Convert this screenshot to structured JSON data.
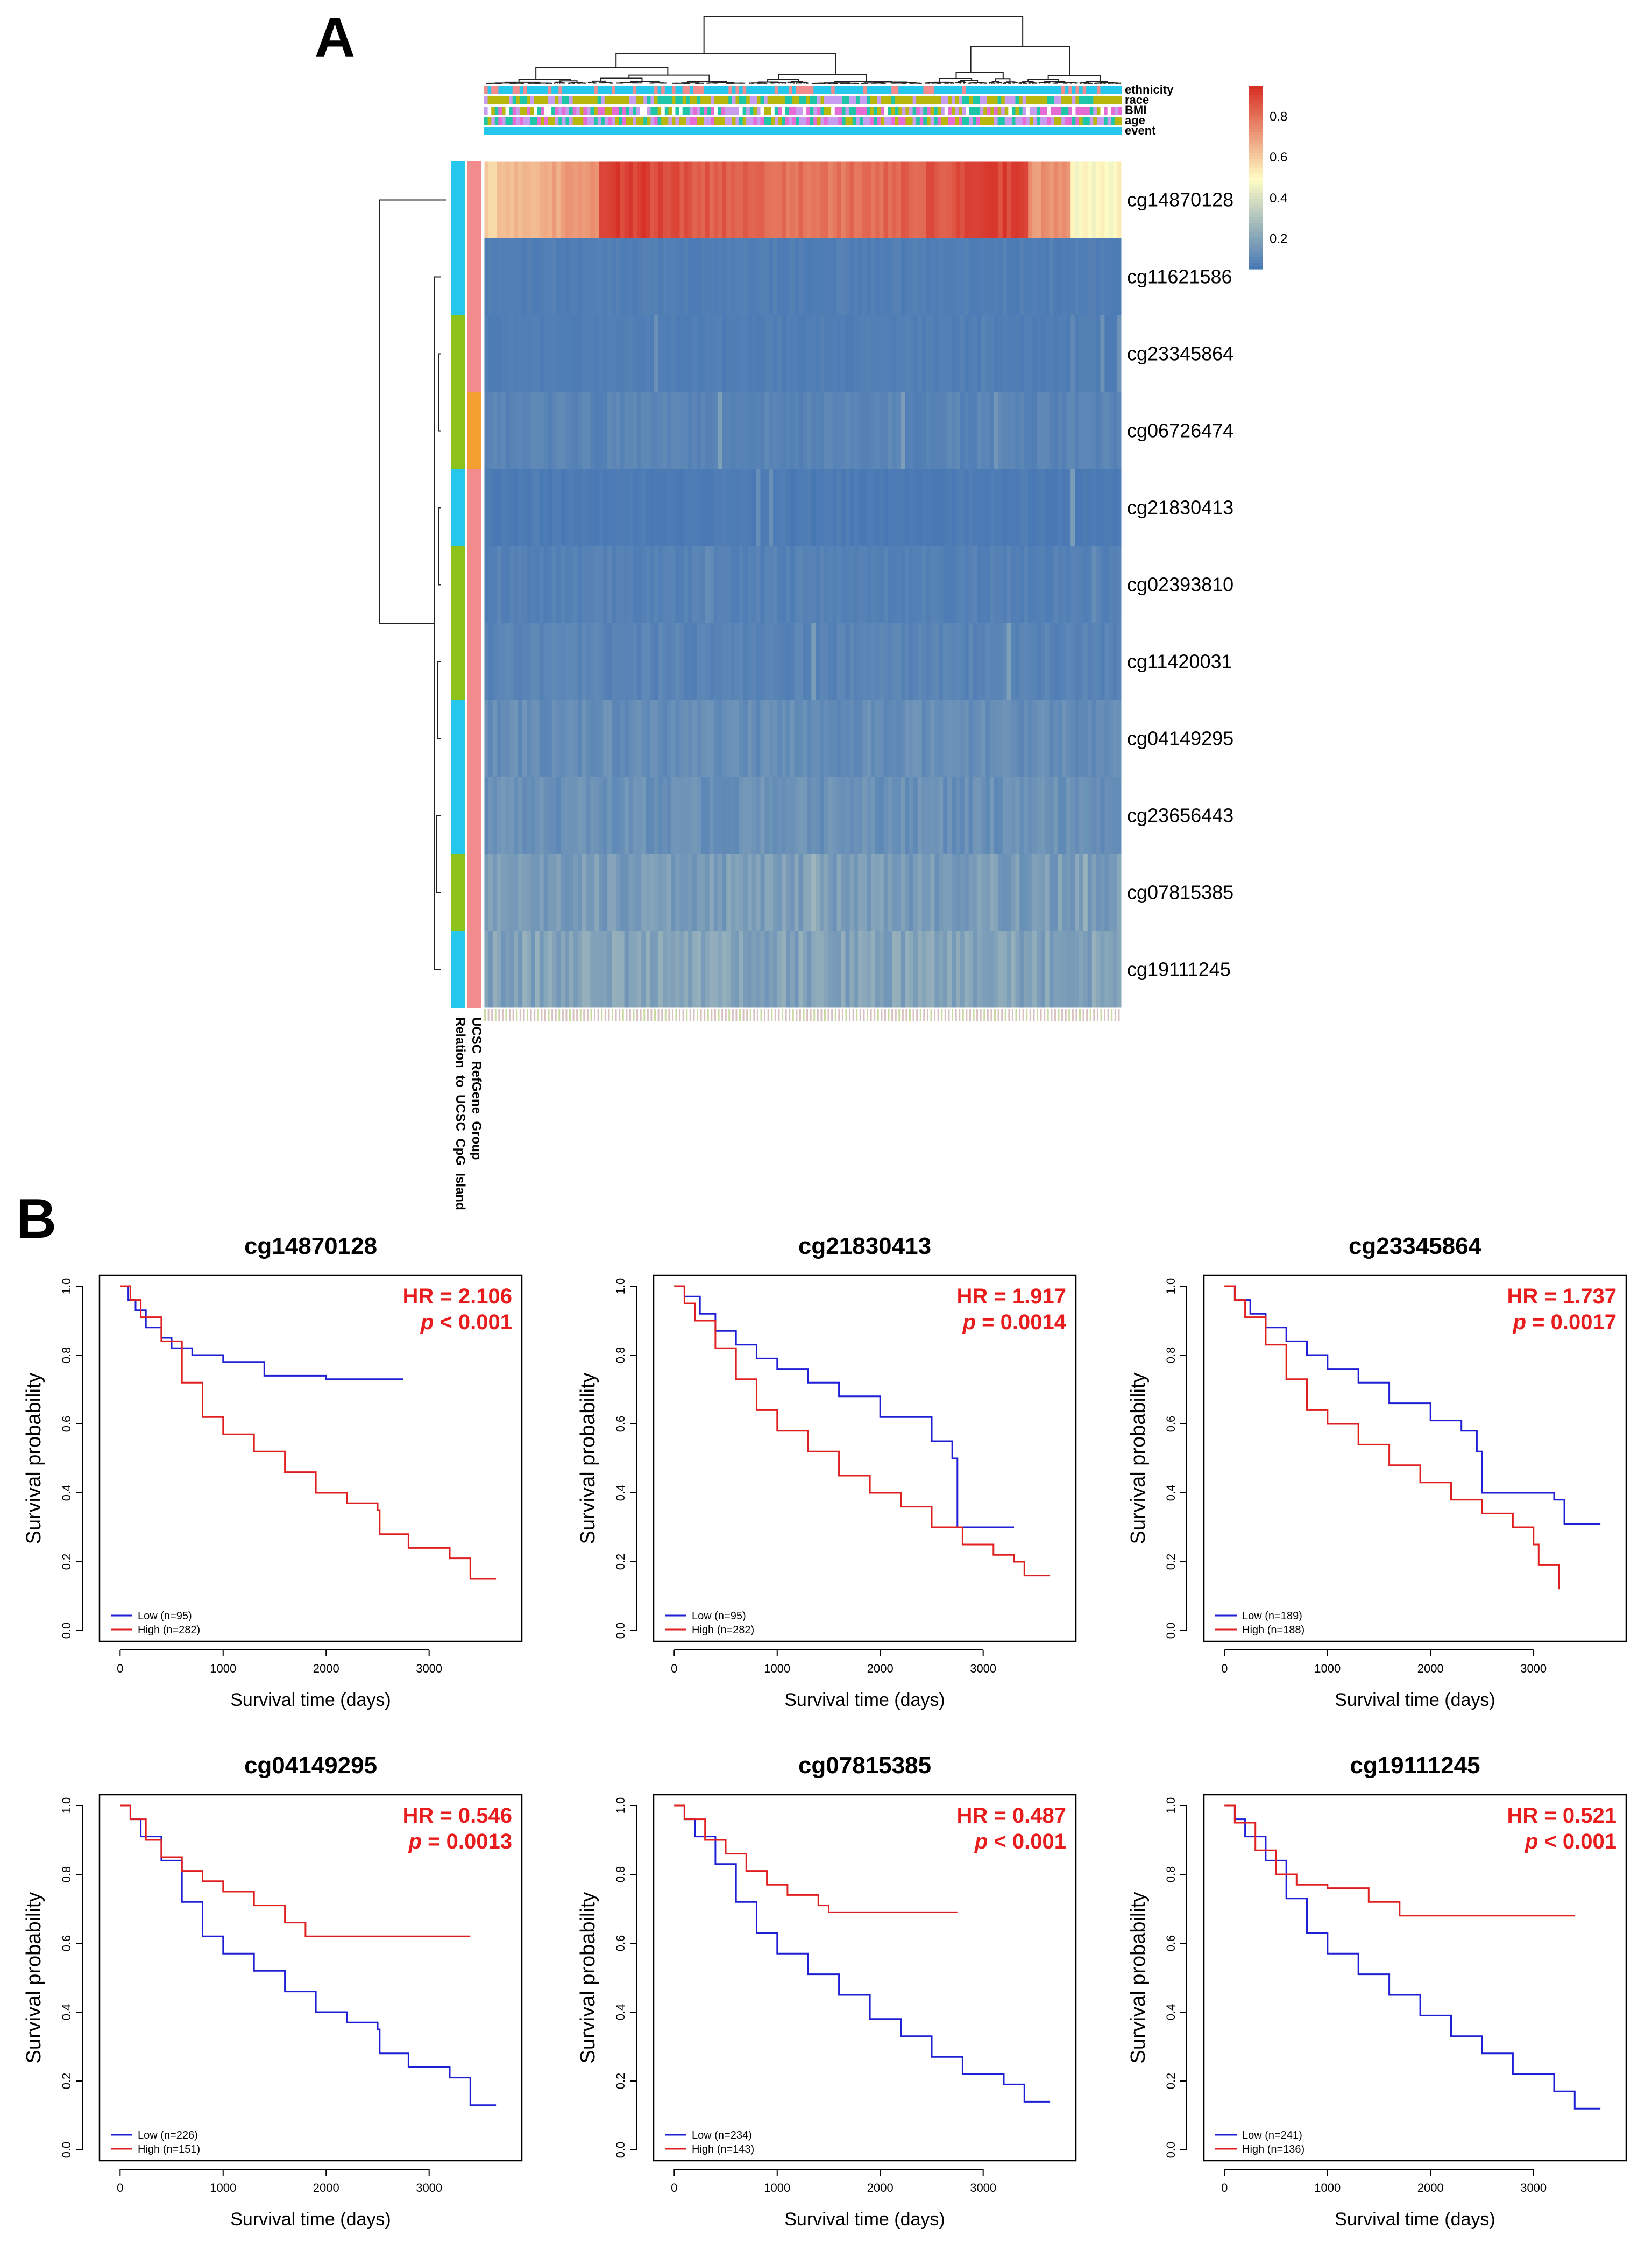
{
  "figure": {
    "panel_a_label": "A",
    "panel_b_label": "B"
  },
  "colors": {
    "high": "#e02020",
    "low": "#1f1fd6",
    "hr_text": "#e81c1c",
    "heat_low": "#4475b4",
    "heat_mid": "#fffdc4",
    "heat_high": "#d73027",
    "annot_cyan": "#25c8ec",
    "annot_pink": "#f28b8b",
    "annot_green": "#8cc21a",
    "annot_orange": "#f4a030",
    "annot_purple": "#c79df0",
    "annot_olive": "#b7b70d",
    "annot_teal": "#1cc6a6",
    "annot_magenta": "#e66bd4"
  },
  "chart_data": [
    {
      "type": "heatmap",
      "panel": "A",
      "rows": [
        "cg14870128",
        "cg11621586",
        "cg23345864",
        "cg06726474",
        "cg21830413",
        "cg02393810",
        "cg11420031",
        "cg04149295",
        "cg23656443",
        "cg07815385",
        "cg19111245"
      ],
      "row_mean_beta": [
        0.75,
        0.08,
        0.08,
        0.1,
        0.07,
        0.09,
        0.1,
        0.13,
        0.14,
        0.18,
        0.2
      ],
      "column_annotations": [
        "ethnicity",
        "race",
        "BMI",
        "age",
        "event"
      ],
      "row_annotations": [
        "UCSC_RefGene_Group",
        "Relation_to_UCSC_CpG_Island"
      ],
      "row_annotation_groups": {
        "Relation_to_UCSC_CpG_Island": [
          "cyan",
          "cyan",
          "green",
          "green",
          "cyan",
          "green",
          "green",
          "cyan",
          "cyan",
          "green",
          "cyan"
        ],
        "UCSC_RefGene_Group": [
          "pink",
          "pink",
          "pink",
          "orange",
          "pink",
          "pink",
          "pink",
          "pink",
          "pink",
          "pink",
          "pink"
        ]
      },
      "colorbar_ticks": [
        0.2,
        0.4,
        0.6,
        0.8
      ],
      "value_range": [
        0.05,
        0.95
      ]
    },
    {
      "type": "line",
      "panel": "B",
      "title": "cg14870128",
      "xlabel": "Survival time (days)",
      "ylabel": "Survival probability",
      "xlim": [
        -200,
        3900
      ],
      "ylim": [
        0,
        1.0
      ],
      "xticks": [
        0,
        1000,
        2000,
        3000
      ],
      "yticks": [
        0.0,
        0.2,
        0.4,
        0.6,
        0.8,
        1.0
      ],
      "hr_label": "HR = 2.106",
      "p_prefix": "p",
      "p_rest": " < 0.001",
      "legend": [
        "Low (n=95)",
        "High (n=282)"
      ],
      "series": [
        {
          "name": "Low (n=95)",
          "color": "low",
          "x": [
            0,
            80,
            150,
            250,
            400,
            500,
            700,
            1000,
            1400,
            2000,
            2750
          ],
          "y": [
            1.0,
            0.96,
            0.93,
            0.88,
            0.85,
            0.82,
            0.8,
            0.78,
            0.74,
            0.73,
            0.73
          ]
        },
        {
          "name": "High (n=282)",
          "color": "high",
          "x": [
            0,
            100,
            200,
            400,
            600,
            800,
            1000,
            1300,
            1600,
            1900,
            2200,
            2500,
            2520,
            2800,
            3200,
            3400,
            3650
          ],
          "y": [
            1.0,
            0.96,
            0.91,
            0.84,
            0.72,
            0.62,
            0.57,
            0.52,
            0.46,
            0.4,
            0.37,
            0.35,
            0.28,
            0.24,
            0.21,
            0.15,
            0.15
          ]
        }
      ]
    },
    {
      "type": "line",
      "panel": "B",
      "title": "cg21830413",
      "xlabel": "Survival time (days)",
      "ylabel": "Survival probability",
      "xlim": [
        -200,
        3900
      ],
      "ylim": [
        0,
        1.0
      ],
      "xticks": [
        0,
        1000,
        2000,
        3000
      ],
      "yticks": [
        0.0,
        0.2,
        0.4,
        0.6,
        0.8,
        1.0
      ],
      "hr_label": "HR = 1.917",
      "p_prefix": "p",
      "p_rest": " = 0.0014",
      "legend": [
        "Low (n=95)",
        "High (n=282)"
      ],
      "series": [
        {
          "name": "Low (n=95)",
          "color": "low",
          "x": [
            0,
            100,
            250,
            400,
            600,
            800,
            1000,
            1300,
            1600,
            2000,
            2500,
            2700,
            2750,
            3300
          ],
          "y": [
            1.0,
            0.97,
            0.92,
            0.87,
            0.83,
            0.79,
            0.76,
            0.72,
            0.68,
            0.62,
            0.55,
            0.5,
            0.3,
            0.3
          ]
        },
        {
          "name": "High (n=282)",
          "color": "high",
          "x": [
            0,
            100,
            200,
            400,
            600,
            800,
            1000,
            1300,
            1600,
            1900,
            2200,
            2500,
            2800,
            3100,
            3300,
            3400,
            3650
          ],
          "y": [
            1.0,
            0.95,
            0.9,
            0.82,
            0.73,
            0.64,
            0.58,
            0.52,
            0.45,
            0.4,
            0.36,
            0.3,
            0.25,
            0.22,
            0.2,
            0.16,
            0.16
          ]
        }
      ]
    },
    {
      "type": "line",
      "panel": "B",
      "title": "cg23345864",
      "xlabel": "Survival time (days)",
      "ylabel": "Survival probability",
      "xlim": [
        -200,
        3900
      ],
      "ylim": [
        0,
        1.0
      ],
      "xticks": [
        0,
        1000,
        2000,
        3000
      ],
      "yticks": [
        0.0,
        0.2,
        0.4,
        0.6,
        0.8,
        1.0
      ],
      "hr_label": "HR = 1.737",
      "p_prefix": "p",
      "p_rest": " = 0.0017",
      "legend": [
        "Low (n=189)",
        "High (n=188)"
      ],
      "series": [
        {
          "name": "Low (n=189)",
          "color": "low",
          "x": [
            0,
            100,
            250,
            400,
            600,
            800,
            1000,
            1300,
            1600,
            2000,
            2300,
            2450,
            2500,
            3200,
            3300,
            3650
          ],
          "y": [
            1.0,
            0.96,
            0.92,
            0.88,
            0.84,
            0.8,
            0.76,
            0.72,
            0.66,
            0.61,
            0.58,
            0.52,
            0.4,
            0.38,
            0.31,
            0.31
          ]
        },
        {
          "name": "High (n=188)",
          "color": "high",
          "x": [
            0,
            100,
            200,
            400,
            600,
            800,
            1000,
            1300,
            1600,
            1900,
            2200,
            2500,
            2800,
            3000,
            3050,
            3250
          ],
          "y": [
            1.0,
            0.96,
            0.91,
            0.83,
            0.73,
            0.64,
            0.6,
            0.54,
            0.48,
            0.43,
            0.38,
            0.34,
            0.3,
            0.25,
            0.19,
            0.12
          ]
        }
      ]
    },
    {
      "type": "line",
      "panel": "B",
      "title": "cg04149295",
      "xlabel": "Survival time (days)",
      "ylabel": "Survival probability",
      "xlim": [
        -200,
        3900
      ],
      "ylim": [
        0,
        1.0
      ],
      "xticks": [
        0,
        1000,
        2000,
        3000
      ],
      "yticks": [
        0.0,
        0.2,
        0.4,
        0.6,
        0.8,
        1.0
      ],
      "hr_label": "HR = 0.546",
      "p_prefix": "p",
      "p_rest": " = 0.0013",
      "legend": [
        "Low (n=226)",
        "High (n=151)"
      ],
      "series": [
        {
          "name": "Low (n=226)",
          "color": "low",
          "x": [
            0,
            100,
            200,
            400,
            600,
            800,
            1000,
            1300,
            1600,
            1900,
            2200,
            2500,
            2520,
            2800,
            3200,
            3400,
            3650
          ],
          "y": [
            1.0,
            0.96,
            0.91,
            0.84,
            0.72,
            0.62,
            0.57,
            0.52,
            0.46,
            0.4,
            0.37,
            0.35,
            0.28,
            0.24,
            0.21,
            0.13,
            0.13
          ]
        },
        {
          "name": "High (n=151)",
          "color": "high",
          "x": [
            0,
            100,
            250,
            400,
            600,
            800,
            1000,
            1300,
            1600,
            1800,
            2500,
            3400
          ],
          "y": [
            1.0,
            0.96,
            0.9,
            0.85,
            0.81,
            0.78,
            0.75,
            0.71,
            0.66,
            0.62,
            0.62,
            0.62
          ]
        }
      ]
    },
    {
      "type": "line",
      "panel": "B",
      "title": "cg07815385",
      "xlabel": "Survival time (days)",
      "ylabel": "Survival probability",
      "xlim": [
        -200,
        3900
      ],
      "ylim": [
        0,
        1.0
      ],
      "xticks": [
        0,
        1000,
        2000,
        3000
      ],
      "yticks": [
        0.0,
        0.2,
        0.4,
        0.6,
        0.8,
        1.0
      ],
      "hr_label": "HR = 0.487",
      "p_prefix": "p",
      "p_rest": " < 0.001",
      "legend": [
        "Low (n=234)",
        "High (n=143)"
      ],
      "series": [
        {
          "name": "Low (n=234)",
          "color": "low",
          "x": [
            0,
            100,
            200,
            400,
            600,
            800,
            1000,
            1300,
            1600,
            1900,
            2200,
            2500,
            2800,
            3200,
            3400,
            3650
          ],
          "y": [
            1.0,
            0.96,
            0.91,
            0.83,
            0.72,
            0.63,
            0.57,
            0.51,
            0.45,
            0.38,
            0.33,
            0.27,
            0.22,
            0.19,
            0.14,
            0.14
          ]
        },
        {
          "name": "High (n=143)",
          "color": "high",
          "x": [
            0,
            100,
            300,
            500,
            700,
            900,
            1100,
            1400,
            1500,
            2750
          ],
          "y": [
            1.0,
            0.96,
            0.9,
            0.86,
            0.81,
            0.77,
            0.74,
            0.71,
            0.69,
            0.69
          ]
        }
      ]
    },
    {
      "type": "line",
      "panel": "B",
      "title": "cg19111245",
      "xlabel": "Survival time (days)",
      "ylabel": "Survival probability",
      "xlim": [
        -200,
        3900
      ],
      "ylim": [
        0,
        1.0
      ],
      "xticks": [
        0,
        1000,
        2000,
        3000
      ],
      "yticks": [
        0.0,
        0.2,
        0.4,
        0.6,
        0.8,
        1.0
      ],
      "hr_label": "HR = 0.521",
      "p_prefix": "p",
      "p_rest": " < 0.001",
      "legend": [
        "Low (n=241)",
        "High (n=136)"
      ],
      "series": [
        {
          "name": "Low (n=241)",
          "color": "low",
          "x": [
            0,
            100,
            200,
            400,
            600,
            800,
            1000,
            1300,
            1600,
            1900,
            2200,
            2500,
            2800,
            3200,
            3400,
            3650
          ],
          "y": [
            1.0,
            0.96,
            0.91,
            0.84,
            0.73,
            0.63,
            0.57,
            0.51,
            0.45,
            0.39,
            0.33,
            0.28,
            0.22,
            0.17,
            0.12,
            0.12
          ]
        },
        {
          "name": "High (n=136)",
          "color": "high",
          "x": [
            0,
            100,
            300,
            500,
            700,
            1000,
            1400,
            1700,
            3400
          ],
          "y": [
            1.0,
            0.95,
            0.87,
            0.8,
            0.77,
            0.76,
            0.72,
            0.68,
            0.68
          ]
        }
      ]
    }
  ]
}
